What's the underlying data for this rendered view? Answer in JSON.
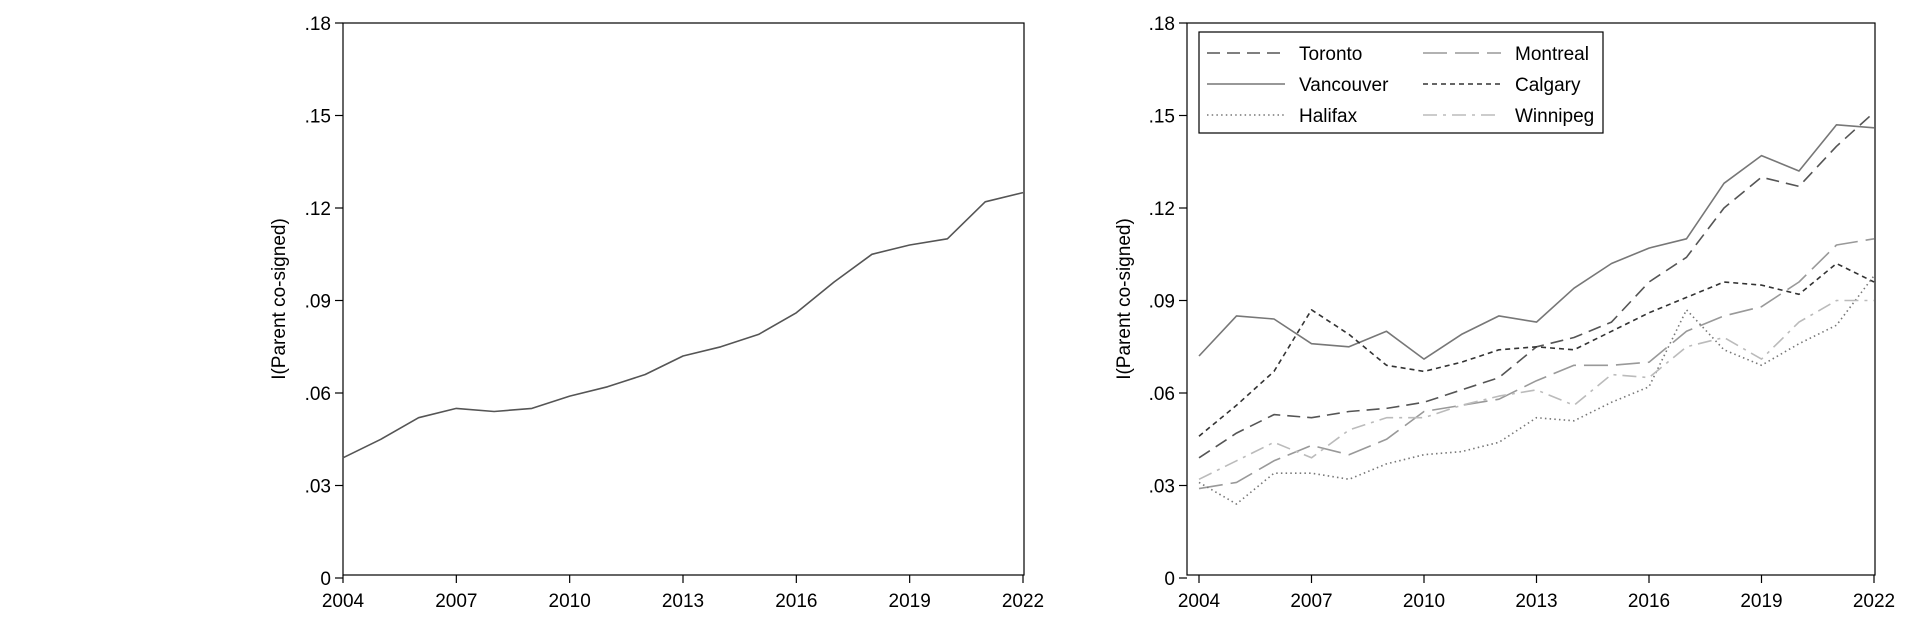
{
  "colors": {
    "background": "#ffffff",
    "axis": "#000000"
  },
  "chart_data": [
    {
      "type": "line",
      "xlabel": "",
      "ylabel": "I(Parent co-signed)",
      "xlim": [
        2004,
        2022
      ],
      "ylim": [
        0,
        0.18
      ],
      "x_ticks": [
        "2004",
        "2007",
        "2010",
        "2013",
        "2016",
        "2019",
        "2022"
      ],
      "y_ticks": [
        "0",
        ".03",
        ".06",
        ".09",
        ".12",
        ".15",
        ".18"
      ],
      "x": [
        2004,
        2005,
        2006,
        2007,
        2008,
        2009,
        2010,
        2011,
        2012,
        2013,
        2014,
        2015,
        2016,
        2017,
        2018,
        2019,
        2020,
        2021,
        2022
      ],
      "series": [
        {
          "color": "#555555",
          "dash": "solid",
          "values": [
            0.039,
            0.045,
            0.052,
            0.055,
            0.054,
            0.055,
            0.059,
            0.062,
            0.066,
            0.072,
            0.075,
            0.079,
            0.086,
            0.096,
            0.105,
            0.108,
            0.11,
            0.122,
            0.125
          ]
        }
      ]
    },
    {
      "type": "line",
      "xlabel": "",
      "ylabel": "I(Parent co-signed)",
      "xlim": [
        2004,
        2022
      ],
      "ylim": [
        0,
        0.18
      ],
      "x_ticks": [
        "2004",
        "2007",
        "2010",
        "2013",
        "2016",
        "2019",
        "2022"
      ],
      "y_ticks": [
        "0",
        ".03",
        ".06",
        ".09",
        ".12",
        ".15",
        ".18"
      ],
      "legend_position": "top-left",
      "x": [
        2004,
        2005,
        2006,
        2007,
        2008,
        2009,
        2010,
        2011,
        2012,
        2013,
        2014,
        2015,
        2016,
        2017,
        2018,
        2019,
        2020,
        2021,
        2022
      ],
      "series": [
        {
          "name": "Toronto",
          "color": "#555555",
          "dash": "long-dash",
          "values": [
            0.039,
            0.047,
            0.053,
            0.052,
            0.054,
            0.055,
            0.057,
            0.061,
            0.065,
            0.075,
            0.078,
            0.083,
            0.096,
            0.104,
            0.12,
            0.13,
            0.127,
            0.14,
            0.151
          ]
        },
        {
          "name": "Montreal",
          "color": "#999999",
          "dash": "very-long-dash",
          "values": [
            0.029,
            0.031,
            0.038,
            0.043,
            0.04,
            0.045,
            0.054,
            0.056,
            0.058,
            0.064,
            0.069,
            0.069,
            0.07,
            0.08,
            0.085,
            0.088,
            0.096,
            0.108,
            0.11
          ]
        },
        {
          "name": "Vancouver",
          "color": "#777777",
          "dash": "solid",
          "values": [
            0.072,
            0.085,
            0.084,
            0.076,
            0.075,
            0.08,
            0.071,
            0.079,
            0.085,
            0.083,
            0.094,
            0.102,
            0.107,
            0.11,
            0.128,
            0.137,
            0.132,
            0.147,
            0.146
          ]
        },
        {
          "name": "Calgary",
          "color": "#333333",
          "dash": "short-dash",
          "values": [
            0.046,
            0.056,
            0.067,
            0.087,
            0.079,
            0.069,
            0.067,
            0.07,
            0.074,
            0.075,
            0.074,
            0.08,
            0.086,
            0.091,
            0.096,
            0.095,
            0.092,
            0.102,
            0.096
          ]
        },
        {
          "name": "Halifax",
          "color": "#777777",
          "dash": "dotted",
          "values": [
            0.031,
            0.024,
            0.034,
            0.034,
            0.032,
            0.037,
            0.04,
            0.041,
            0.044,
            0.052,
            0.051,
            0.057,
            0.062,
            0.087,
            0.074,
            0.069,
            0.076,
            0.082,
            0.098
          ]
        },
        {
          "name": "Winnipeg",
          "color": "#bbbbbb",
          "dash": "dash-dot",
          "values": [
            0.032,
            0.038,
            0.044,
            0.039,
            0.048,
            0.052,
            0.052,
            0.056,
            0.059,
            0.061,
            0.056,
            0.066,
            0.065,
            0.075,
            0.078,
            0.071,
            0.083,
            0.09,
            0.09
          ]
        }
      ]
    }
  ]
}
